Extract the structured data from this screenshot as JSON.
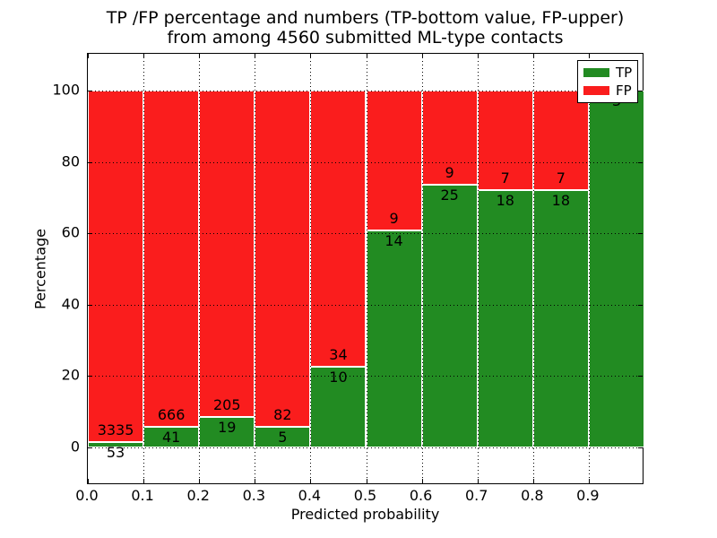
{
  "title": {
    "line1": "TP /FP percentage and numbers (TP-bottom value, FP-upper)",
    "line2": "from among 4560 submitted ML-type contacts"
  },
  "chart_data": {
    "type": "bar",
    "stacked": true,
    "orientation": "vertical",
    "title": "TP /FP percentage and numbers (TP-bottom value, FP-upper)\nfrom among 4560 submitted ML-type contacts",
    "xlabel": "Predicted probability",
    "ylabel": "Percentage",
    "total_contacts": 4560,
    "xlim": [
      0.0,
      1.0
    ],
    "ylim_bars": [
      0,
      100
    ],
    "ylim_display": [
      -10.6,
      110.3
    ],
    "bin_starts": [
      0.0,
      0.1,
      0.2,
      0.3,
      0.4,
      0.5,
      0.6,
      0.7,
      0.8,
      0.9
    ],
    "bin_width": 0.1,
    "series": [
      {
        "name": "TP",
        "color": "#228b22",
        "counts": [
          53,
          41,
          19,
          5,
          10,
          14,
          25,
          18,
          18,
          3
        ]
      },
      {
        "name": "FP",
        "color": "#fa1d1d",
        "counts": [
          3335,
          666,
          205,
          82,
          34,
          9,
          9,
          7,
          7,
          0
        ]
      }
    ],
    "tp_percent_heights": [
      1.56,
      5.8,
      8.48,
      5.75,
      22.73,
      60.87,
      73.53,
      72.0,
      72.0,
      100.0
    ],
    "x_tick_labels": [
      "0.0",
      "0.1",
      "0.2",
      "0.3",
      "0.4",
      "0.5",
      "0.6",
      "0.7",
      "0.8",
      "0.9"
    ],
    "y_tick_labels": [
      "0",
      "20",
      "40",
      "60",
      "80",
      "100"
    ],
    "grid_x": [
      0.1,
      0.2,
      0.3,
      0.4,
      0.5,
      0.6,
      0.7,
      0.8,
      0.9
    ],
    "grid_y": [
      0,
      20,
      40,
      60,
      80,
      100
    ],
    "grid": true,
    "grid_style": "dotted",
    "annotation_convention": "TP-bottom value, FP-upper",
    "legend_position": "upper right"
  },
  "legend": {
    "items": [
      {
        "label": "TP",
        "color": "#228b22"
      },
      {
        "label": "FP",
        "color": "#fa1d1d"
      }
    ]
  }
}
